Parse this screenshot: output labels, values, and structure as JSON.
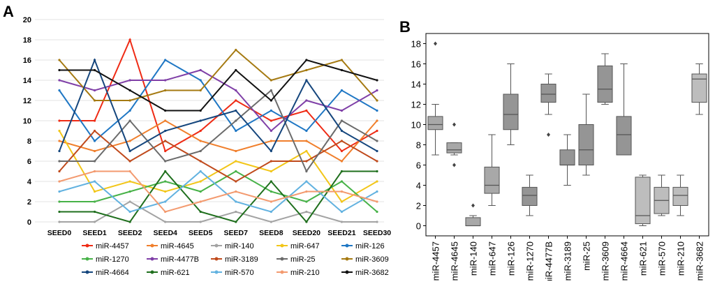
{
  "panels": {
    "a_label": "A",
    "b_label": "B"
  },
  "chart_data": [
    {
      "type": "line",
      "x": [
        "SEED0",
        "SEED1",
        "SEED2",
        "SEED4",
        "SEED5",
        "SEED7",
        "SEED8",
        "SEED20",
        "SEED21",
        "SEED30"
      ],
      "ylim": [
        0,
        20
      ],
      "yticks": [
        0,
        2,
        4,
        6,
        8,
        10,
        12,
        14,
        16,
        18,
        20
      ],
      "grid": true,
      "legend_position": "bottom",
      "series": [
        {
          "name": "miR-4457",
          "color": "#ef2b15",
          "values": [
            10,
            10,
            18,
            7,
            9,
            12,
            10,
            11,
            7,
            9
          ]
        },
        {
          "name": "miR-4645",
          "color": "#f07f2c",
          "values": [
            8,
            7,
            8,
            10,
            8,
            7,
            8,
            8,
            6,
            10
          ]
        },
        {
          "name": "miR-140",
          "color": "#a3a3a3",
          "values": [
            0,
            0,
            2,
            0,
            0,
            1,
            0,
            1,
            0,
            0
          ]
        },
        {
          "name": "miR-647",
          "color": "#f2c619",
          "values": [
            9,
            3,
            4,
            3,
            4,
            6,
            5,
            7,
            2,
            4
          ]
        },
        {
          "name": "miR-126",
          "color": "#1f77c4",
          "values": [
            13,
            8,
            11,
            16,
            14,
            9,
            11,
            9,
            13,
            11
          ]
        },
        {
          "name": "miR-1270",
          "color": "#47b248",
          "values": [
            2,
            2,
            3,
            4,
            3,
            5,
            3,
            2,
            4,
            1
          ]
        },
        {
          "name": "miR-4477B",
          "color": "#7f3fa7",
          "values": [
            14,
            13,
            14,
            14,
            15,
            13,
            9,
            12,
            11,
            13
          ]
        },
        {
          "name": "miR-3189",
          "color": "#c04a1c",
          "values": [
            5,
            9,
            6,
            8,
            6,
            4,
            6,
            6,
            8,
            6
          ]
        },
        {
          "name": "miR-25",
          "color": "#6b6b6b",
          "values": [
            6,
            6,
            10,
            6,
            7,
            10,
            13,
            5,
            10,
            8
          ]
        },
        {
          "name": "miR-3609",
          "color": "#a57a12",
          "values": [
            16,
            12,
            12,
            13,
            13,
            17,
            14,
            15,
            16,
            12
          ]
        },
        {
          "name": "miR-4664",
          "color": "#15467d",
          "values": [
            7,
            16,
            7,
            9,
            10,
            11,
            7,
            14,
            9,
            7
          ]
        },
        {
          "name": "miR-621",
          "color": "#1f6f1d",
          "values": [
            1,
            1,
            0,
            5,
            1,
            0,
            4,
            0,
            5,
            5
          ]
        },
        {
          "name": "miR-570",
          "color": "#62b2e0",
          "values": [
            3,
            4,
            1,
            2,
            5,
            2,
            1,
            4,
            1,
            3
          ]
        },
        {
          "name": "miR-210",
          "color": "#f39a6f",
          "values": [
            4,
            5,
            5,
            1,
            2,
            3,
            2,
            3,
            3,
            2
          ]
        },
        {
          "name": "miR-3682",
          "color": "#111111",
          "values": [
            15,
            15,
            13,
            11,
            11,
            15,
            12,
            16,
            15,
            14
          ]
        }
      ]
    },
    {
      "type": "box",
      "categories": [
        "miR-4457",
        "miR-4645",
        "miR-140",
        "miR-647",
        "miR-126",
        "miR-1270",
        "miR-4477B",
        "miR-3189",
        "miR-25",
        "miR-3609",
        "miR-4664",
        "miR-621",
        "miR-570",
        "miR-210",
        "miR-3682"
      ],
      "ylim": [
        -1,
        19
      ],
      "yticks": [
        0,
        2,
        4,
        6,
        8,
        10,
        12,
        14,
        16,
        18
      ],
      "boxes": [
        {
          "min": 7,
          "q1": 9.5,
          "median": 10,
          "q3": 10.8,
          "max": 12,
          "outliers": [
            18
          ],
          "fill": "#a8a8a8"
        },
        {
          "min": 7,
          "q1": 7.2,
          "median": 7.5,
          "q3": 8.2,
          "max": 8.2,
          "outliers": [
            10,
            6
          ],
          "fill": "#a8a8a8"
        },
        {
          "min": 0,
          "q1": 0,
          "median": 0,
          "q3": 0.8,
          "max": 1,
          "outliers": [
            2
          ],
          "fill": "#a8a8a8"
        },
        {
          "min": 2,
          "q1": 3.2,
          "median": 4,
          "q3": 5.8,
          "max": 9,
          "outliers": [],
          "fill": "#a8a8a8"
        },
        {
          "min": 8,
          "q1": 9.5,
          "median": 11,
          "q3": 13,
          "max": 16,
          "outliers": [],
          "fill": "#959595"
        },
        {
          "min": 1,
          "q1": 2,
          "median": 3,
          "q3": 3.8,
          "max": 5,
          "outliers": [],
          "fill": "#959595"
        },
        {
          "min": 11,
          "q1": 12.2,
          "median": 13,
          "q3": 14,
          "max": 15,
          "outliers": [
            9
          ],
          "fill": "#959595"
        },
        {
          "min": 4,
          "q1": 6,
          "median": 6,
          "q3": 7.5,
          "max": 9,
          "outliers": [],
          "fill": "#959595"
        },
        {
          "min": 5,
          "q1": 6,
          "median": 7.5,
          "q3": 10,
          "max": 13,
          "outliers": [],
          "fill": "#959595"
        },
        {
          "min": 12,
          "q1": 12.2,
          "median": 13.5,
          "q3": 15.8,
          "max": 17,
          "outliers": [],
          "fill": "#959595"
        },
        {
          "min": 7,
          "q1": 7,
          "median": 9,
          "q3": 10.8,
          "max": 16,
          "outliers": [],
          "fill": "#959595"
        },
        {
          "min": 0,
          "q1": 0.2,
          "median": 1,
          "q3": 4.8,
          "max": 5,
          "outliers": [],
          "fill": "#bdbdbd"
        },
        {
          "min": 1,
          "q1": 1.2,
          "median": 2.5,
          "q3": 3.8,
          "max": 5,
          "outliers": [],
          "fill": "#bdbdbd"
        },
        {
          "min": 1,
          "q1": 2,
          "median": 3,
          "q3": 3.8,
          "max": 5,
          "outliers": [],
          "fill": "#bdbdbd"
        },
        {
          "min": 11,
          "q1": 12.2,
          "median": 14.5,
          "q3": 15,
          "max": 16,
          "outliers": [],
          "fill": "#bdbdbd"
        }
      ]
    }
  ]
}
